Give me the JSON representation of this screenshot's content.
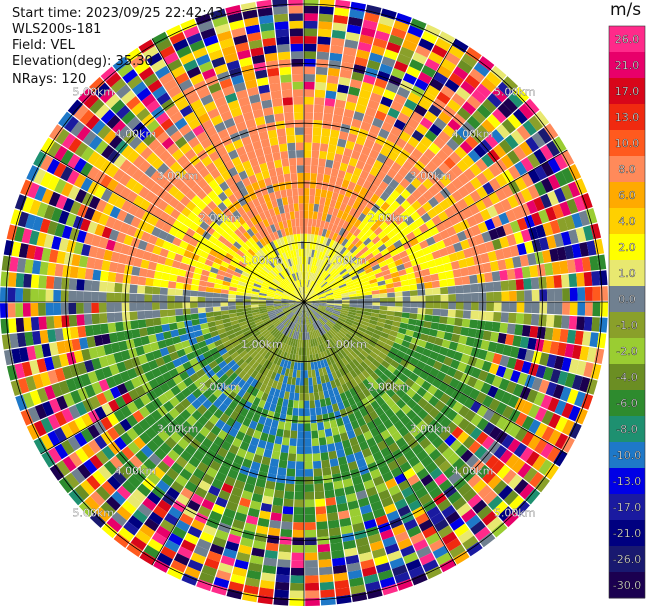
{
  "header": {
    "start_time": "Start time: 2023/09/25 22:42:43",
    "instrument": "WLS200s-181",
    "field": "Field: VEL",
    "elevation": "Elevation(deg): 35.30",
    "nrays": "NRays: 120"
  },
  "chart_data": {
    "type": "heatmap",
    "projection": "polar-ppi",
    "field": "VEL",
    "nrays": 120,
    "range_rings_km": [
      1.0,
      2.0,
      3.0,
      4.0,
      5.0
    ],
    "ring_label_text": [
      "1.00km",
      "2.00km",
      "3.00km",
      "4.00km",
      "5.00km"
    ],
    "colorbar": {
      "unit": "m/s",
      "tick_labels": [
        "26.0",
        "21.0",
        "17.0",
        "13.0",
        "10.0",
        "8.0",
        "6.0",
        "4.0",
        "2.0",
        "1.0",
        "0.0",
        "-1.0",
        "-2.0",
        "-4.0",
        "-6.0",
        "-8.0",
        "-10.0",
        "-13.0",
        "-17.0",
        "-21.0",
        "-26.0",
        "-30.0"
      ],
      "colors": [
        "#ff2a8a",
        "#e8006a",
        "#d8061a",
        "#f02a10",
        "#ff5a1e",
        "#ff8a5a",
        "#ffaa00",
        "#ffd000",
        "#ffff00",
        "#e8e870",
        "#708090",
        "#8aa02a",
        "#9acd32",
        "#6b8e23",
        "#2e8b2e",
        "#1e9070",
        "#1e78c8",
        "#0000e6",
        "#1a1aa0",
        "#000080",
        "#191970",
        "#1b0050"
      ]
    }
  }
}
